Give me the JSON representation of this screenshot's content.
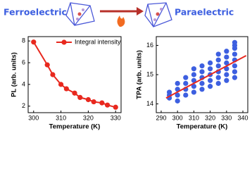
{
  "header": {
    "left_label": "Ferroelectric",
    "right_label": "Paraelectric"
  },
  "chart_data": [
    {
      "type": "line",
      "xlabel": "Temperature (K)",
      "ylabel": "PL (arb. units)",
      "xlim": [
        298,
        332
      ],
      "ylim": [
        1.4,
        8.4
      ],
      "xticks": [
        300,
        310,
        320,
        330
      ],
      "yticks": [
        2,
        4,
        6,
        8
      ],
      "legend": "upper right",
      "series": [
        {
          "name": "Integral intensity",
          "color": "#e8281e",
          "marker_color": "#e8281e",
          "x": [
            300,
            305,
            307,
            310,
            312,
            315,
            317,
            320,
            322,
            325,
            327,
            330
          ],
          "values": [
            7.9,
            5.8,
            4.9,
            4.0,
            3.6,
            3.2,
            2.8,
            2.6,
            2.4,
            2.3,
            2.1,
            1.9
          ]
        }
      ]
    },
    {
      "type": "scatter",
      "xlabel": "Temperature (K)",
      "ylabel": "TPA (arb. units)",
      "xlim": [
        287,
        343
      ],
      "ylim": [
        13.7,
        16.3
      ],
      "xticks": [
        290,
        300,
        310,
        320,
        330,
        340
      ],
      "yticks": [
        14,
        15,
        16
      ],
      "series": [
        {
          "type": "scatter",
          "color": "#3d5fe0",
          "x": [
            295,
            295,
            295,
            300,
            300,
            300,
            300,
            305,
            305,
            305,
            305,
            310,
            310,
            310,
            310,
            310,
            315,
            315,
            315,
            315,
            315,
            320,
            320,
            320,
            320,
            320,
            325,
            325,
            325,
            325,
            325,
            325,
            330,
            330,
            330,
            330,
            330,
            330,
            335,
            335,
            335,
            335,
            335,
            335,
            335,
            335
          ],
          "values": [
            14.2,
            14.3,
            14.4,
            14.1,
            14.3,
            14.5,
            14.7,
            14.3,
            14.5,
            14.7,
            14.9,
            14.4,
            14.6,
            14.8,
            15.0,
            15.2,
            14.5,
            14.7,
            14.9,
            15.1,
            15.3,
            14.6,
            14.8,
            15.0,
            15.2,
            15.4,
            14.7,
            14.9,
            15.1,
            15.3,
            15.5,
            15.7,
            14.8,
            15.0,
            15.2,
            15.4,
            15.6,
            15.8,
            14.9,
            15.1,
            15.3,
            15.5,
            15.7,
            15.9,
            16.0,
            16.1
          ]
        },
        {
          "type": "line",
          "color": "#e8281e",
          "x": [
            293,
            342
          ],
          "values": [
            14.2,
            15.65
          ]
        }
      ]
    }
  ]
}
